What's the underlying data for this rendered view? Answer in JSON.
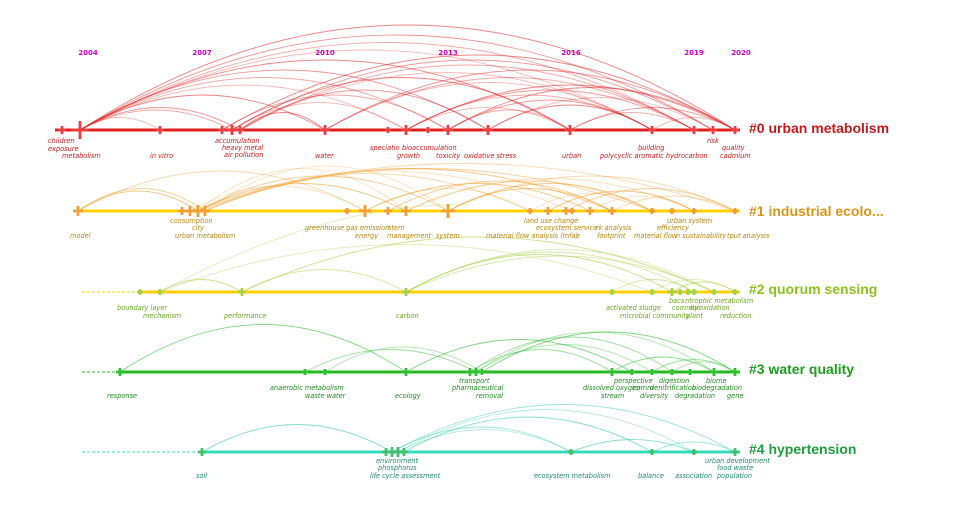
{
  "timeline": {
    "years": [
      "2004",
      "2007",
      "2010",
      "2013",
      "2016",
      "2019",
      "2020"
    ],
    "year_color": "#cc00cc"
  },
  "clusters": [
    {
      "id": "#0",
      "label": "#0 urban metabolism",
      "color": "#e02020",
      "label_color": "#c41a1a",
      "keywords": [
        "children",
        "exposure",
        "metabolism",
        "in vitro",
        "accumulation",
        "heavy metal",
        "air pollution",
        "water",
        "speciatio",
        "bioaccumulation",
        "growth",
        "toxicity",
        "oxidative stress",
        "urban",
        "building",
        "polycyclic aromatic hydrocarbon",
        "risk",
        "quality",
        "cadmium"
      ]
    },
    {
      "id": "#1",
      "label": "#1 industrial ecolo...",
      "color": "#ffd000",
      "label_color": "#d9951a",
      "keywords": [
        "model",
        "consumption",
        "city",
        "urban metabolism",
        "greenhouse gas emission",
        "energy",
        "stem",
        "management",
        "system",
        "land use change",
        "ecosystem service",
        "material flow analysis (mfa)",
        "e",
        "rk analysis",
        "footprint",
        "urban system",
        "efficiency",
        "material flow",
        "n sustainability",
        "tput analysis"
      ]
    },
    {
      "id": "#2",
      "label": "#2 quorum sensing",
      "color": "#ffd000",
      "label_color": "#8cc21a",
      "keywords": [
        "boundary layer",
        "mechanism",
        "performance",
        "carbon",
        "activated sludge",
        "microbial community",
        "bacs",
        "ntrophic metabolism",
        "commun",
        "ity",
        "oxidation",
        "plant",
        "reduction"
      ]
    },
    {
      "id": "#3",
      "label": "#3 water quality",
      "color": "#22bb22",
      "label_color": "#1e9e1e",
      "keywords": [
        "response",
        "anaerobic metabolism",
        "waste water",
        "ecology",
        "transport",
        "pharmaceutical",
        "removal",
        "dissolved oxygen",
        "perspective",
        "comm",
        "stream",
        "denitrification",
        "digestion",
        "diversity",
        "degradation",
        "biome",
        "biodegradation",
        "gene"
      ]
    },
    {
      "id": "#4",
      "label": "#4 hypertension",
      "color": "#33ddbb",
      "label_color": "#1e9e3c",
      "keywords": [
        "soil",
        "environment",
        "phosphorus",
        "life cycle assessment",
        "ecosystem metabolism",
        "balance",
        "association",
        "urban development",
        "food waste",
        "population"
      ]
    }
  ]
}
